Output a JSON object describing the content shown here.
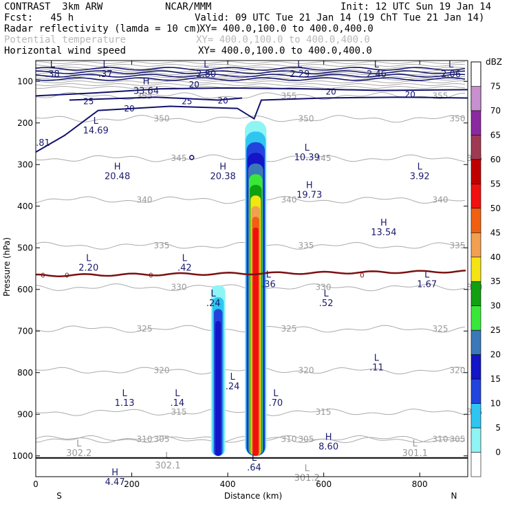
{
  "header": {
    "model": "CONTRAST  3km ARW",
    "forecast": "Fcst:   45 h",
    "center": "NCAR/MMM",
    "init": "Init: 12 UTC Sun 19 Jan 14",
    "valid": "Valid: 09 UTC Tue 21 Jan 14 (19 ChT Tue 21 Jan 14)"
  },
  "fields": [
    {
      "name": "Radar reflectivity (lamda = 10 cm)",
      "xy": "XY= 400.0,100.0 to 400.0,400.0",
      "color": "#000000"
    },
    {
      "name": "Potential temperature",
      "xy": "XY= 400.0,100.0 to 400.0,400.0",
      "color": "#b8b8b8"
    },
    {
      "name": "Horizontal wind speed",
      "xy": "XY= 400.0,100.0 to 400.0,400.0",
      "color": "#000000"
    }
  ],
  "colors": {
    "wind": "#10106e",
    "theta": "#aaaaaa",
    "freezing": "#7b1010",
    "hl": "#1a1a6e",
    "theta_label": "#999999"
  },
  "chart_data": {
    "type": "cross-section",
    "title": "CONTRAST  3km ARW",
    "xlabel": "Distance (km)",
    "ylabel": "Pressure (hPa)",
    "xlim": [
      0,
      900
    ],
    "ylim": [
      1050,
      50
    ],
    "xticks": [
      0,
      200,
      400,
      600,
      800
    ],
    "yticks": [
      100,
      200,
      300,
      400,
      500,
      600,
      700,
      800,
      900,
      1000
    ],
    "x_end_labels": {
      "left": "S",
      "right": "N"
    },
    "colorbar": {
      "unit": "dBZ",
      "levels": [
        0,
        5,
        10,
        15,
        20,
        25,
        30,
        35,
        40,
        45,
        50,
        55,
        60,
        65,
        70,
        75
      ],
      "colors": [
        "#ffffff",
        "#8ef4f4",
        "#2ec6f0",
        "#2244dd",
        "#1414c8",
        "#3a78b8",
        "#38e838",
        "#10a010",
        "#f5e414",
        "#f0a050",
        "#f06010",
        "#f01010",
        "#c00000",
        "#a03a52",
        "#8a2aa0",
        "#c890d0"
      ]
    },
    "reflectivity_cells": [
      {
        "x_left": 365,
        "x_right": 395,
        "p_top": 590,
        "p_bottom": 1000,
        "max_dbz": 20
      },
      {
        "x_left": 430,
        "x_right": 475,
        "p_top": 195,
        "p_bottom": 1000,
        "max_dbz": 55
      }
    ],
    "wind_contours": [
      20,
      25
    ],
    "theta_contours": [
      305,
      310,
      315,
      320,
      325,
      330,
      335,
      340,
      345,
      350,
      355
    ],
    "freezing_level": {
      "label": "0",
      "p": 560
    },
    "pressure_surface": {
      "p": 1005
    },
    "labels": [
      {
        "type": "L",
        "value": ".38",
        "x": 35,
        "p": 90,
        "field": "wind"
      },
      {
        "type": "L",
        "value": ".37",
        "x": 145,
        "p": 90,
        "field": "wind"
      },
      {
        "type": "L",
        "value": "2.80",
        "x": 355,
        "p": 90,
        "field": "wind"
      },
      {
        "type": "L",
        "value": "2.29",
        "x": 550,
        "p": 90,
        "field": "wind"
      },
      {
        "type": "L",
        "value": "2.46",
        "x": 710,
        "p": 90,
        "field": "wind"
      },
      {
        "type": "L",
        "value": "2.06",
        "x": 865,
        "p": 90,
        "field": "wind"
      },
      {
        "type": "H",
        "value": "33.64",
        "x": 230,
        "p": 130,
        "field": "wind"
      },
      {
        "type": "L",
        "value": "14.69",
        "x": 125,
        "p": 225,
        "field": "wind"
      },
      {
        "type": "",
        "value": ".81",
        "x": 15,
        "p": 255,
        "field": "wind"
      },
      {
        "type": "L",
        "value": "10.39",
        "x": 565,
        "p": 290,
        "field": "wind"
      },
      {
        "type": "H",
        "value": "20.48",
        "x": 170,
        "p": 335,
        "field": "wind"
      },
      {
        "type": "H",
        "value": "20.38",
        "x": 390,
        "p": 335,
        "field": "wind"
      },
      {
        "type": "L",
        "value": "3.92",
        "x": 800,
        "p": 335,
        "field": "wind"
      },
      {
        "type": "H",
        "value": "19.73",
        "x": 570,
        "p": 380,
        "field": "wind"
      },
      {
        "type": "H",
        "value": "13.54",
        "x": 725,
        "p": 470,
        "field": "wind"
      },
      {
        "type": "L",
        "value": "2.20",
        "x": 110,
        "p": 555,
        "field": "wind"
      },
      {
        "type": "L",
        "value": ".42",
        "x": 310,
        "p": 555,
        "field": "wind"
      },
      {
        "type": "L",
        "value": ".36",
        "x": 485,
        "p": 595,
        "field": "wind"
      },
      {
        "type": "L",
        "value": "1.67",
        "x": 815,
        "p": 595,
        "field": "wind"
      },
      {
        "type": "L",
        "value": ".24",
        "x": 370,
        "p": 640,
        "field": "wind"
      },
      {
        "type": "L",
        "value": ".52",
        "x": 605,
        "p": 640,
        "field": "wind"
      },
      {
        "type": "L",
        "value": ".11",
        "x": 710,
        "p": 795,
        "field": "wind"
      },
      {
        "type": "L",
        "value": ".24",
        "x": 410,
        "p": 840,
        "field": "wind"
      },
      {
        "type": "L",
        "value": "1.13",
        "x": 185,
        "p": 880,
        "field": "wind"
      },
      {
        "type": "L",
        "value": ".14",
        "x": 295,
        "p": 880,
        "field": "wind"
      },
      {
        "type": "L",
        "value": ".70",
        "x": 500,
        "p": 880,
        "field": "wind"
      },
      {
        "type": "H",
        "value": "8.60",
        "x": 610,
        "p": 985,
        "field": "wind"
      },
      {
        "type": "L",
        "value": ".64",
        "x": 455,
        "p": 1035,
        "field": "wind"
      },
      {
        "type": "H",
        "value": "4.47",
        "x": 165,
        "p": 1070,
        "field": "wind"
      },
      {
        "type": "L",
        "value": "302.2",
        "x": 90,
        "p": 1000,
        "field": "theta"
      },
      {
        "type": "L",
        "value": "302.1",
        "x": 275,
        "p": 1030,
        "field": "theta"
      },
      {
        "type": "L",
        "value": "301.2",
        "x": 565,
        "p": 1060,
        "field": "theta"
      },
      {
        "type": "L",
        "value": "301.1",
        "x": 790,
        "p": 1000,
        "field": "theta"
      }
    ]
  }
}
